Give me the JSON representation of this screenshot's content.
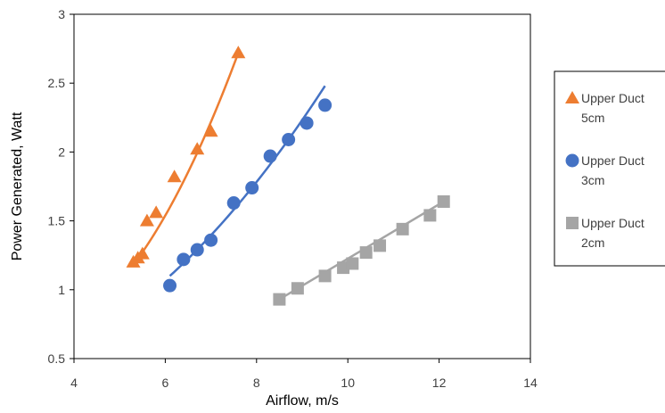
{
  "chart_data": {
    "type": "scatter",
    "xlabel": "Airflow, m/s",
    "ylabel": "Power Generated, Watt",
    "xlim": [
      4,
      14
    ],
    "ylim": [
      0.5,
      3
    ],
    "xticks": [
      4,
      6,
      8,
      10,
      12,
      14
    ],
    "yticks": [
      0.5,
      1,
      1.5,
      2,
      2.5,
      3
    ],
    "grid": false,
    "legend": "right",
    "series": [
      {
        "name": "Upper Duct 5cm",
        "marker": "triangle",
        "color": "#ED7D31",
        "x": [
          5.3,
          5.4,
          5.5,
          5.6,
          5.8,
          6.2,
          6.7,
          7.0,
          7.6
        ],
        "y": [
          1.2,
          1.23,
          1.26,
          1.5,
          1.56,
          1.82,
          2.02,
          2.15,
          2.72
        ],
        "trend": {
          "type": "poly2",
          "x": [
            5.3,
            6.45,
            7.6
          ],
          "y": [
            1.18,
            1.82,
            2.72
          ]
        }
      },
      {
        "name": "Upper Duct 3cm",
        "marker": "circle",
        "color": "#4472C4",
        "x": [
          6.1,
          6.4,
          6.7,
          7.0,
          7.5,
          7.9,
          8.3,
          8.7,
          9.1,
          9.5
        ],
        "y": [
          1.03,
          1.22,
          1.29,
          1.36,
          1.63,
          1.74,
          1.97,
          2.09,
          2.21,
          2.34
        ],
        "trend": {
          "type": "poly2",
          "x": [
            6.1,
            7.8,
            9.5
          ],
          "y": [
            1.1,
            1.7,
            2.48
          ]
        }
      },
      {
        "name": "Upper Duct 2cm",
        "marker": "square",
        "color": "#A5A5A5",
        "x": [
          8.5,
          8.9,
          9.5,
          9.9,
          10.1,
          10.4,
          10.7,
          11.2,
          11.8,
          12.1
        ],
        "y": [
          0.93,
          1.01,
          1.1,
          1.16,
          1.19,
          1.27,
          1.32,
          1.44,
          1.54,
          1.64
        ],
        "trend": {
          "type": "linear",
          "x": [
            8.5,
            12.1
          ],
          "y": [
            0.93,
            1.64
          ]
        }
      }
    ]
  }
}
